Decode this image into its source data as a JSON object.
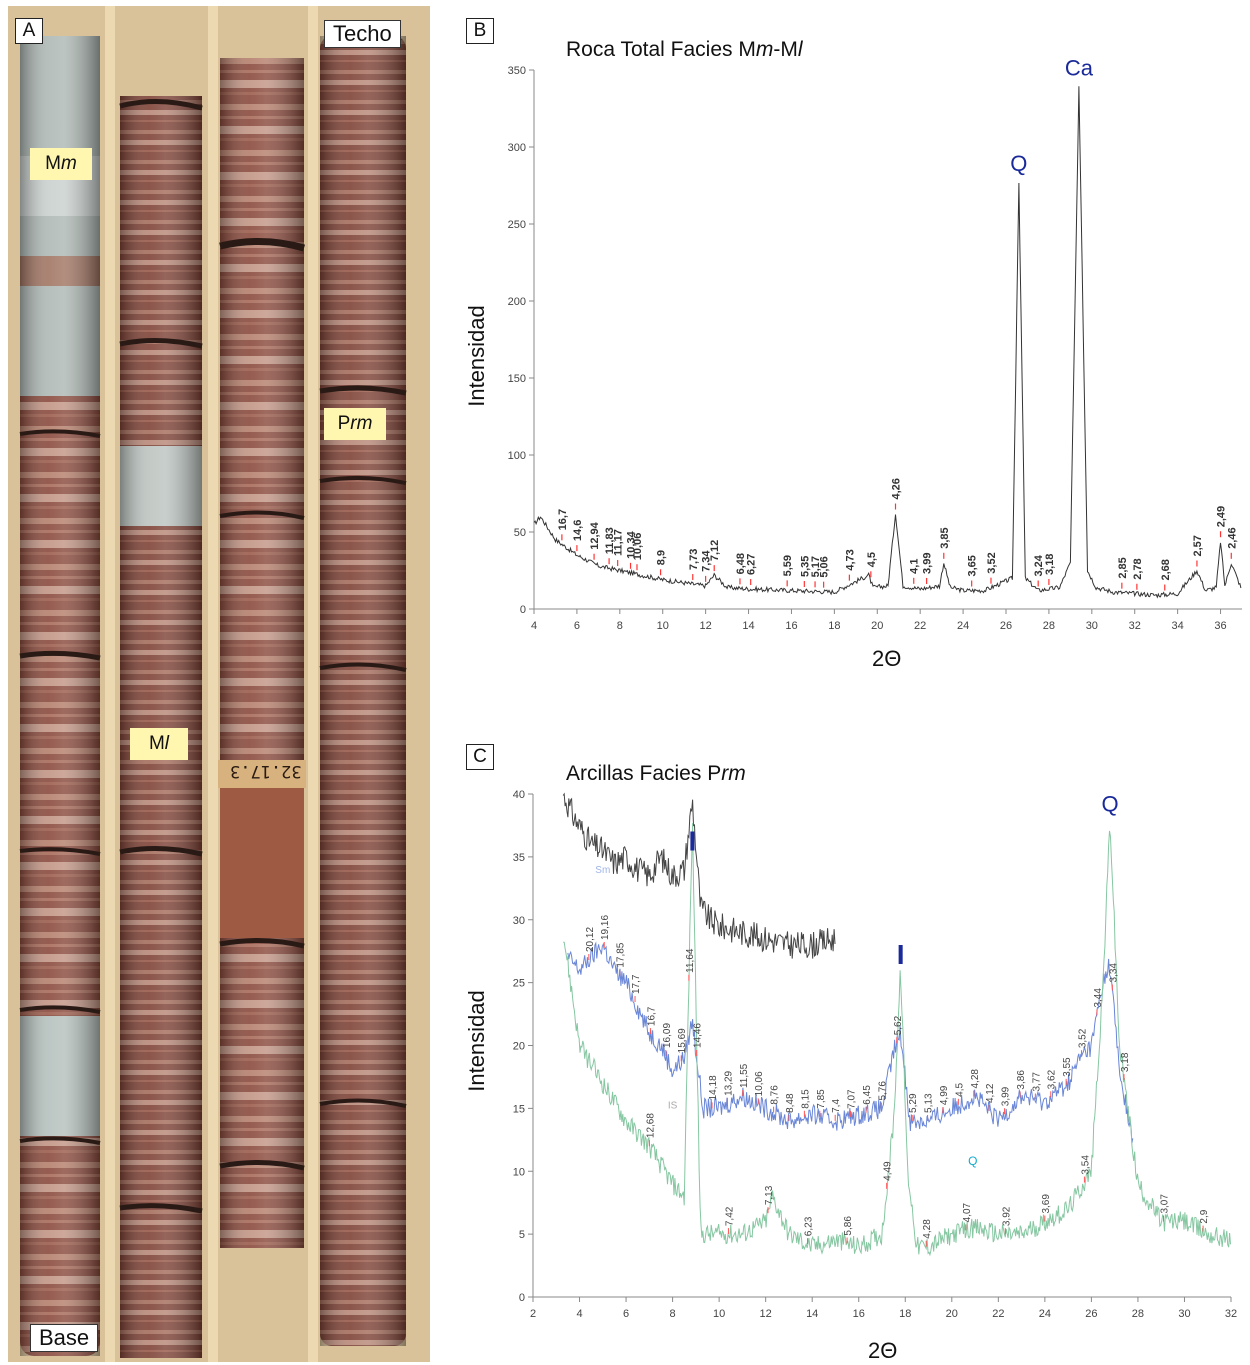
{
  "panel_a": {
    "letter": "A",
    "top_label": "Techo",
    "bottom_label": "Base",
    "facies": [
      "Mm",
      "Ml",
      "Prm"
    ],
    "sample_tag": "32.17.3",
    "colors": {
      "tray": "#d9c29a",
      "core_red": "#8c4a3c",
      "core_grey": "#b9c0bd",
      "tag_fill": "#fff6b0"
    }
  },
  "panel_b": {
    "letter": "B",
    "title": "Roca Total Facies Mm-Ml",
    "ylabel": "Intensidad",
    "xlabel": "2Θ",
    "x_ticks": [
      "4",
      "6",
      "8",
      "10",
      "12",
      "14",
      "16",
      "18",
      "20",
      "22",
      "24",
      "26",
      "28",
      "30",
      "32",
      "34",
      "36"
    ],
    "y_ticks": [
      "0",
      "50",
      "100",
      "150",
      "200",
      "250",
      "300",
      "350"
    ],
    "mineral_labels": [
      "Q",
      "Ca"
    ],
    "colors": {
      "trace": "#333333",
      "peak_marker": "#ff3333",
      "mineral": "#1a2a9a"
    }
  },
  "panel_c": {
    "letter": "C",
    "title": "Arcillas Facies Prm",
    "ylabel": "Intensidad",
    "xlabel": "2Θ",
    "x_ticks": [
      "2",
      "4",
      "6",
      "8",
      "10",
      "12",
      "14",
      "16",
      "18",
      "20",
      "22",
      "24",
      "26",
      "28",
      "30",
      "32"
    ],
    "y_ticks": [
      "0",
      "5",
      "10",
      "15",
      "20",
      "25",
      "30",
      "35",
      "40"
    ],
    "mineral_labels": [
      "I",
      "I",
      "Q"
    ],
    "phase_labels": [
      "Sm",
      "IS",
      "Q"
    ],
    "colors": {
      "black": "#444444",
      "blue": "#6a86d6",
      "green": "#86c7a2",
      "mineral": "#1a2a9a",
      "q_small": "#11aacc"
    }
  },
  "chart_data": [
    {
      "type": "line",
      "title": "Roca Total Facies Mm-Ml",
      "xlabel": "2Θ",
      "ylabel": "Intensidad",
      "xlim": [
        4,
        37
      ],
      "ylim": [
        0,
        350
      ],
      "grid": false,
      "series": [
        {
          "x": [
            4,
            4.3,
            5,
            6,
            7,
            8,
            9,
            10,
            11,
            12,
            12.4,
            13,
            14,
            16,
            18,
            19.6,
            19.8,
            20.5,
            20.85,
            21.2,
            22,
            22.9,
            23.1,
            23.4,
            24,
            25,
            26.3,
            26.6,
            26.9,
            27.5,
            28.5,
            29.0,
            29.4,
            29.8,
            30.2,
            31,
            32,
            33,
            34,
            34.9,
            35.3,
            35.8,
            36.0,
            36.2,
            36.5,
            37
          ],
          "values": [
            55,
            60,
            45,
            35,
            28,
            25,
            22,
            19,
            17,
            15,
            22,
            14,
            13,
            12,
            11,
            22,
            14,
            15,
            62,
            15,
            13,
            15,
            30,
            14,
            12,
            12,
            20,
            278,
            20,
            12,
            14,
            30,
            340,
            25,
            14,
            11,
            10,
            9,
            10,
            25,
            12,
            14,
            44,
            15,
            30,
            12
          ]
        }
      ],
      "peak_labels": [
        "16,7",
        "14,6",
        "12,94",
        "11,83",
        "11,17",
        "10,34",
        "10,06",
        "8,9",
        "7,73",
        "7,34",
        "7,12",
        "6,48",
        "6,27",
        "5,59",
        "5,35",
        "5,17",
        "5,06",
        "4,73",
        "4,5",
        "4,26",
        "4,1",
        "3,99",
        "3,85",
        "3,65",
        "3,52",
        "3,24",
        "3,18",
        "2,85",
        "2,78",
        "2,68",
        "2,57",
        "2,49",
        "2,46"
      ],
      "peak_positions": [
        5.3,
        6.0,
        6.8,
        7.5,
        7.9,
        8.5,
        8.8,
        9.9,
        11.4,
        12.0,
        12.4,
        13.6,
        14.1,
        15.8,
        16.6,
        17.1,
        17.5,
        18.7,
        19.7,
        20.85,
        21.7,
        22.3,
        23.1,
        24.4,
        25.3,
        27.5,
        28.0,
        31.4,
        32.1,
        33.4,
        34.9,
        36.0,
        36.5
      ],
      "annotations": [
        {
          "text": "Q",
          "x": 26.6
        },
        {
          "text": "Ca",
          "x": 29.4
        }
      ]
    },
    {
      "type": "line",
      "title": "Arcillas Facies Prm",
      "xlabel": "2Θ",
      "ylabel": "Intensidad",
      "xlim": [
        2,
        32
      ],
      "ylim": [
        0,
        40
      ],
      "grid": false,
      "series": [
        {
          "x": [
            3.3,
            3.8,
            4.5,
            5,
            5.5,
            6,
            6.5,
            7,
            7.5,
            8,
            8.5,
            8.85,
            9.2,
            9.6,
            10,
            11,
            12,
            13,
            14,
            15
          ],
          "values": [
            40,
            38,
            36,
            35.5,
            34.5,
            35,
            34,
            33.5,
            35,
            33.5,
            34,
            39.5,
            31,
            30,
            29.5,
            29,
            28.5,
            28,
            28,
            28.5
          ]
        },
        {
          "x": [
            3.5,
            4,
            4.5,
            5,
            5.5,
            6,
            6.5,
            7,
            7.5,
            8,
            8.5,
            8.85,
            9.3,
            10,
            11,
            12,
            13,
            14,
            15,
            16,
            17,
            17.5,
            17.8,
            18.2,
            19,
            20,
            21,
            22,
            23,
            24,
            25,
            25.5,
            26,
            26.5,
            26.8,
            27.2,
            27.8
          ],
          "values": [
            27,
            26,
            27,
            28,
            26,
            25,
            23,
            21,
            20,
            18,
            19,
            22,
            15,
            15,
            16,
            15,
            14,
            14.5,
            14,
            14.5,
            15,
            19.5,
            21,
            14,
            14,
            15,
            16,
            14,
            16,
            15.5,
            17,
            19,
            20,
            25,
            26.5,
            18,
            12
          ]
        },
        {
          "x": [
            3.3,
            4,
            5,
            6,
            7,
            8,
            8.5,
            8.85,
            9.2,
            9.6,
            10,
            11,
            12,
            12.3,
            13,
            14,
            15,
            16,
            17,
            17.5,
            17.8,
            18.1,
            18.5,
            19,
            20,
            21,
            22,
            23,
            24,
            25,
            26,
            26.5,
            26.8,
            27.2,
            28,
            29,
            30,
            31,
            32
          ],
          "values": [
            29,
            20,
            17,
            14,
            12,
            9,
            8,
            38,
            5,
            5,
            5,
            5,
            6,
            8,
            5,
            4,
            4.5,
            4,
            5,
            14,
            26,
            10,
            4,
            4,
            5,
            5.5,
            5,
            5,
            6,
            7,
            10,
            25,
            38,
            20,
            9,
            6,
            6,
            5,
            4.5
          ]
        }
      ],
      "peak_labels_blue": [
        "20,12",
        "19,16",
        "17,85",
        "17,7",
        "16,7",
        "16,09",
        "15,69",
        "14,46",
        "14,18",
        "13,29",
        "11,55",
        "10,06",
        "8,76",
        "8,48",
        "8,15",
        "7,85",
        "7,4",
        "7,07",
        "6,45",
        "5,76",
        "5,62",
        "5,29",
        "5,13",
        "4,99",
        "4,5",
        "4,28",
        "4,12",
        "3,99",
        "3,86",
        "3,77",
        "3,62",
        "3,55",
        "3,52",
        "3,44",
        "3,34"
      ],
      "peak_labels_green": [
        "12,68",
        "11,64",
        "7,42",
        "7,13",
        "6,23",
        "5,86",
        "4,49",
        "4,28",
        "4,07",
        "3,92",
        "3,69",
        "3,54",
        "3,18",
        "3,07",
        "2,9"
      ],
      "annotations": [
        {
          "text": "I",
          "x": 8.85
        },
        {
          "text": "I",
          "x": 17.8
        },
        {
          "text": "Q",
          "x": 26.8
        },
        {
          "text": "Sm",
          "x": 5.0
        },
        {
          "text": "IS",
          "x": 8.0
        },
        {
          "text": "Q",
          "x": 20.9
        }
      ]
    }
  ]
}
